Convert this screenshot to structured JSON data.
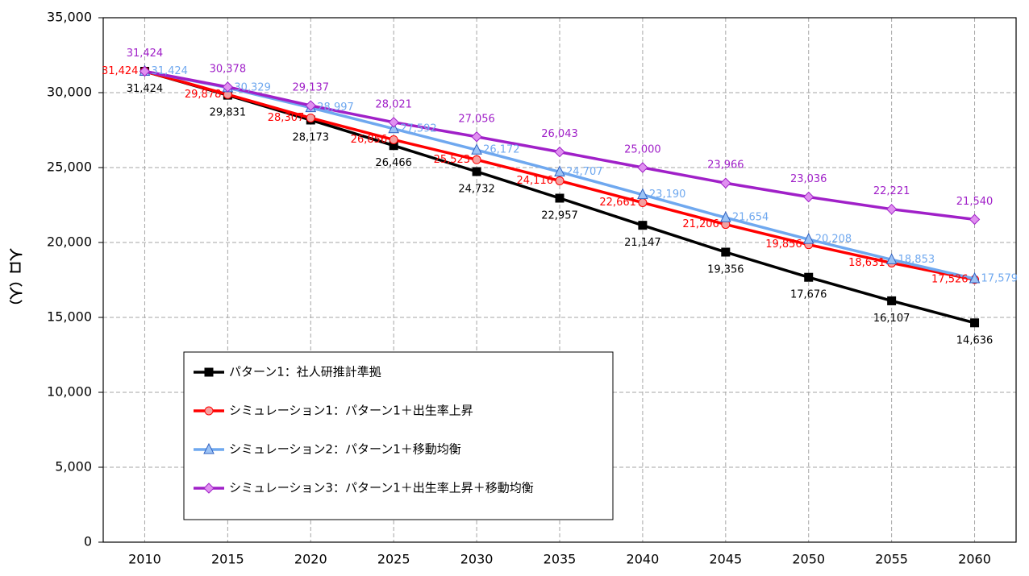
{
  "chart_data": {
    "type": "line",
    "y_label": "人口（人）",
    "categories": [
      "2010",
      "2015",
      "2020",
      "2025",
      "2030",
      "2035",
      "2040",
      "2045",
      "2050",
      "2055",
      "2060"
    ],
    "ylim": [
      0,
      35000
    ],
    "yticks": [
      0,
      {
        "value": 5000,
        "label": "5,000"
      },
      {
        "value": 10000,
        "label": "10,000"
      },
      {
        "value": 15000,
        "label": "15,000"
      },
      {
        "value": 20000,
        "label": "20,000"
      },
      {
        "value": 25000,
        "label": "25,000"
      },
      {
        "value": 30000,
        "label": "30,000"
      },
      {
        "value": 35000,
        "label": "35,000"
      }
    ],
    "grid": true,
    "series": [
      {
        "name": "パターン1：社人研推計準拠",
        "color": "#000000",
        "label_color": "#000000",
        "marker": "square",
        "values": [
          31424,
          29831,
          28173,
          26466,
          24732,
          22957,
          21147,
          19356,
          17676,
          16107,
          14636
        ],
        "value_labels": [
          "31,424",
          "29,831",
          "28,173",
          "26,466",
          "24,732",
          "22,957",
          "21,147",
          "19,356",
          "17,676",
          "16,107",
          "14,636"
        ]
      },
      {
        "name": "シミュレーション1：パターン1＋出生率上昇",
        "color": "#ff0000",
        "label_color": "#ff0000",
        "marker": "circle",
        "values": [
          31424,
          29878,
          28307,
          26856,
          25523,
          24116,
          22661,
          21206,
          19856,
          18631,
          17526
        ],
        "value_labels": [
          "31,424",
          "29,878",
          "28,307",
          "26,856",
          "25,523",
          "24,116",
          "22,661",
          "21,206",
          "19,856",
          "18,631",
          "17,526"
        ]
      },
      {
        "name": "シミュレーション2：パターン1＋移動均衡",
        "color": "#6fa8ef",
        "label_color": "#6fa8ef",
        "marker": "triangle",
        "values": [
          31424,
          30329,
          28997,
          27592,
          26172,
          24707,
          23190,
          21654,
          20208,
          18853,
          17579
        ],
        "value_labels": [
          "31,424",
          "30,329",
          "28,997",
          "27,592",
          "26,172",
          "24,707",
          "23,190",
          "21,654",
          "20,208",
          "18,853",
          "17,579"
        ]
      },
      {
        "name": "シミュレーション3：パターン1＋出生率上昇＋移動均衡",
        "color": "#a020c8",
        "label_color": "#a020c8",
        "marker": "diamond",
        "values": [
          31424,
          30378,
          29137,
          28021,
          27056,
          26043,
          25000,
          23966,
          23036,
          22221,
          21540
        ],
        "value_labels": [
          "31,424",
          "30,378",
          "29,137",
          "28,021",
          "27,056",
          "26,043",
          "25,000",
          "23,966",
          "23,036",
          "22,221",
          "21,540"
        ]
      }
    ]
  }
}
